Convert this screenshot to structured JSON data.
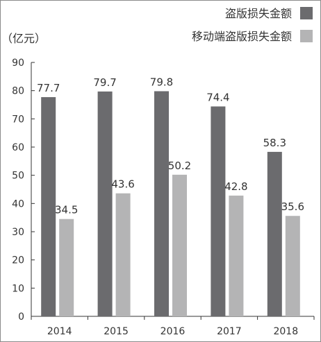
{
  "chart_data": {
    "type": "bar",
    "unit_label": "（亿元）",
    "categories": [
      "2014",
      "2015",
      "2016",
      "2017",
      "2018"
    ],
    "series": [
      {
        "name": "盗版损失金额",
        "color": "#6b6b6e",
        "values": [
          77.7,
          79.7,
          79.8,
          74.4,
          58.3
        ]
      },
      {
        "name": "移动端盗版损失金额",
        "color": "#b4b4b5",
        "values": [
          34.5,
          43.6,
          50.2,
          42.8,
          35.6
        ]
      }
    ],
    "ylim": [
      0,
      90
    ],
    "yticks": [
      "0",
      "10",
      "20",
      "30",
      "40",
      "50",
      "60",
      "70",
      "80",
      "90"
    ],
    "data_labels": [
      [
        "77.7",
        "79.7",
        "79.8",
        "74.4",
        "58.3"
      ],
      [
        "34.5",
        "43.6",
        "50.2",
        "42.8",
        "35.6"
      ]
    ],
    "legend_position": "top-right",
    "grid": false
  }
}
